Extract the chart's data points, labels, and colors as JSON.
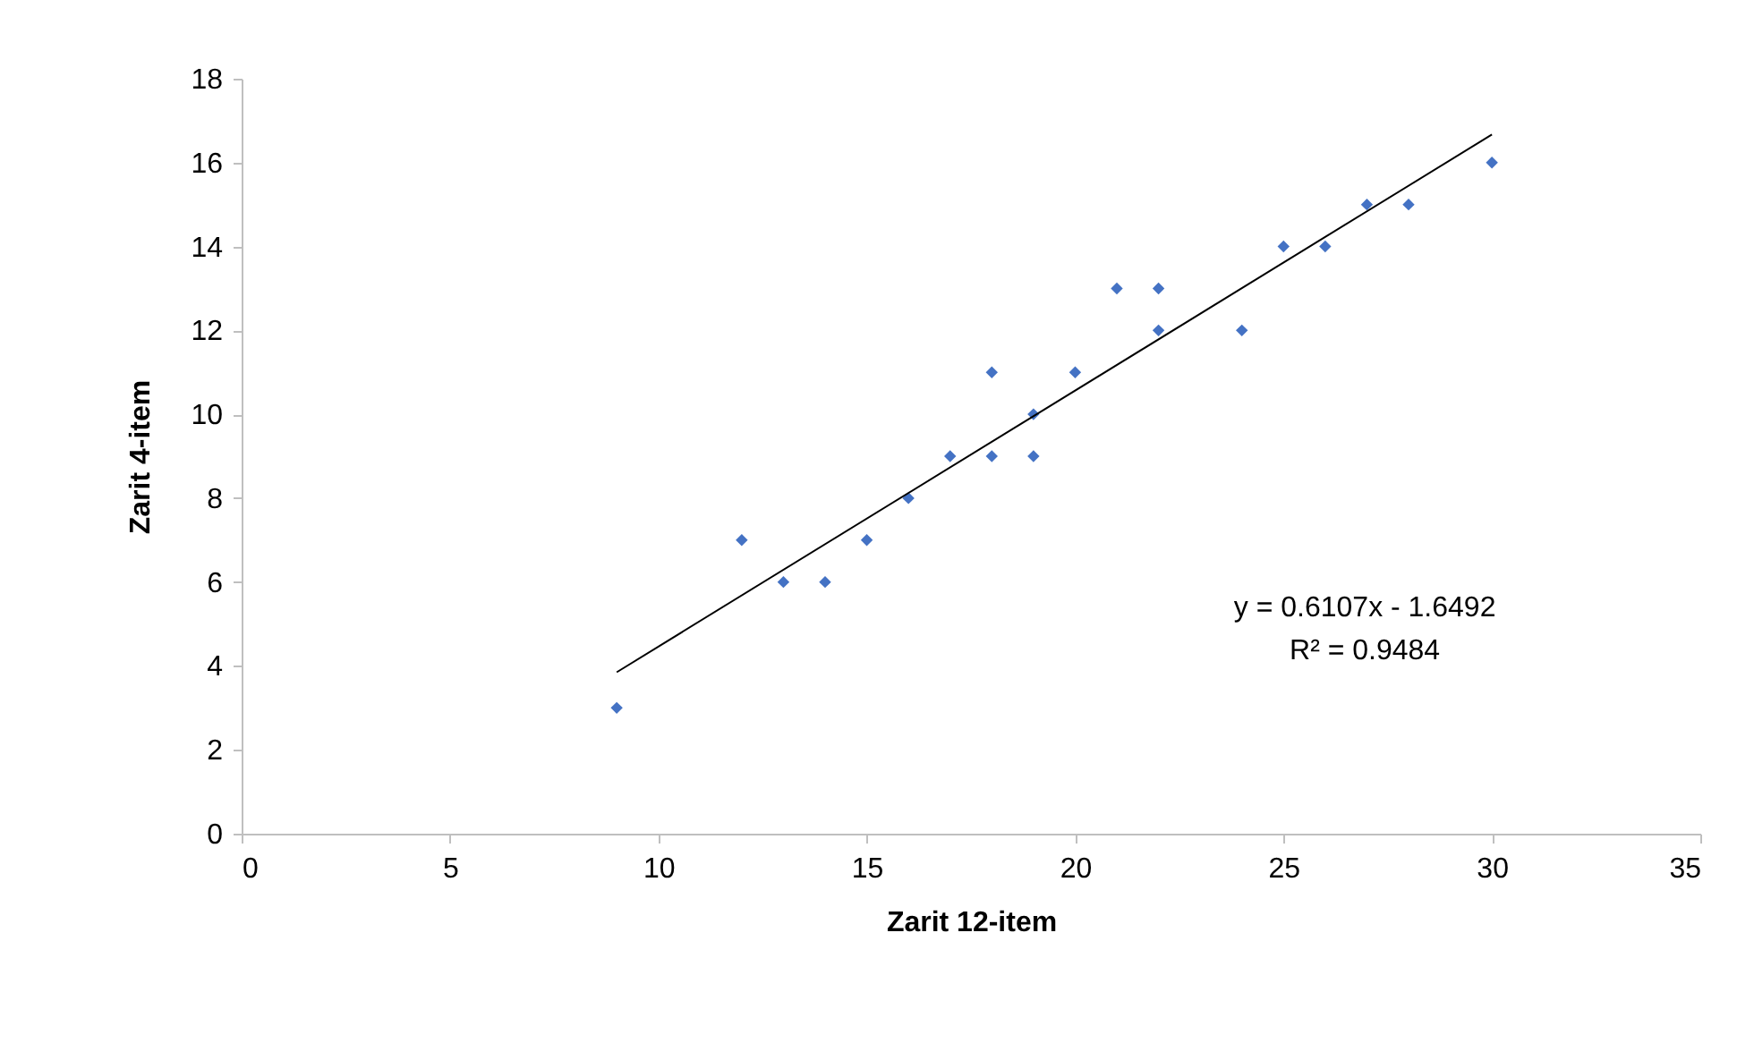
{
  "chart_data": {
    "type": "scatter",
    "xlabel": "Zarit 12-item",
    "ylabel": "Zarit 4-item",
    "xlim": [
      0,
      35
    ],
    "xticks": [
      0,
      5,
      10,
      15,
      20,
      25,
      30,
      35
    ],
    "ylim": [
      0,
      18
    ],
    "yticks": [
      0,
      2,
      4,
      6,
      8,
      10,
      12,
      14,
      16,
      18
    ],
    "grid": false,
    "marker": "diamond",
    "series": [
      {
        "color": "#4472c4",
        "x": [
          9,
          12,
          13,
          14,
          15,
          16,
          17,
          18,
          18,
          19,
          19,
          20,
          21,
          22,
          22,
          24,
          25,
          26,
          27,
          28,
          30
        ],
        "values": [
          3,
          7,
          6,
          6,
          7,
          8,
          9,
          9,
          11,
          10,
          9,
          11,
          13,
          13,
          12,
          12,
          14,
          14,
          15,
          15,
          16
        ]
      },
      {
        "type": "line",
        "color": "#000000",
        "line_style": "solid",
        "marker": "none",
        "x": [
          9,
          30
        ],
        "values": [
          3.85,
          16.67
        ]
      }
    ],
    "annotations": [
      "y = 0.6107x - 1.6492",
      "R² = 0.9484"
    ]
  }
}
